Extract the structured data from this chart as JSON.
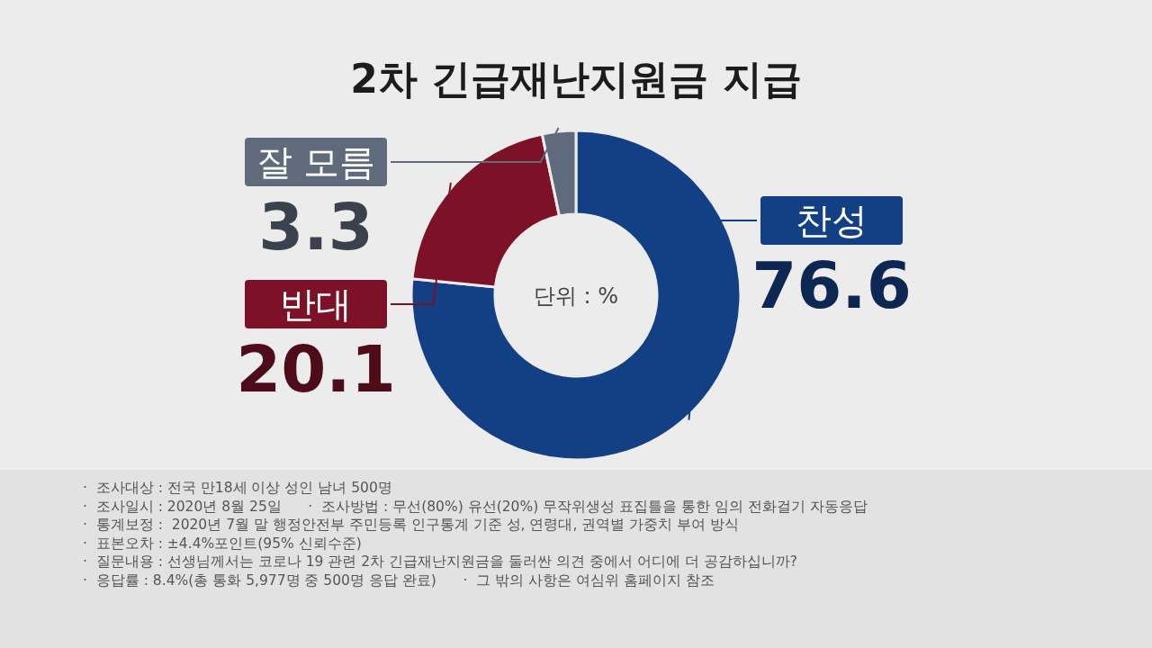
{
  "chart_data": {
    "type": "donut",
    "title": "2차 긴급재난지원금 지급",
    "categories": [
      "찬성",
      "반대",
      "잘 모름"
    ],
    "values": [
      76.6,
      20.1,
      3.3
    ],
    "colors": [
      "#133f85",
      "#7d1128",
      "#5f6b7c"
    ],
    "data_labels": true,
    "annotations": [
      "단위 : %",
      "·  조사대상 : 전국 만18세 이상 성인 남녀 500명",
      "·  조사일시 : 2020년 8월 25일      ·  조사방법 : 무선(80%) 유선(20%) 무작위생성 표집틀을 통한 임의 전화걸기 자동응답",
      "·  통계보정 :  2020년 7월 말 행정안전부 주민등록 인구통계 기준 성, 연령대, 권역별 가중치 부여 방식",
      "·  표본오차 : ±4.4%포인트(95% 신뢰수준)",
      "·  질문내용 : 선생님께서는 코로나 19 관련 2차 긴급재난지원금을 둘러싼 의견 중에서 어디에 더 공감하십니까?",
      "·  응답률 : 8.4%(총 통화 5,977명 중 500명 응답 완료)      ·  그 밖의 사항은 여심위 홈페이지 참조"
    ]
  }
}
